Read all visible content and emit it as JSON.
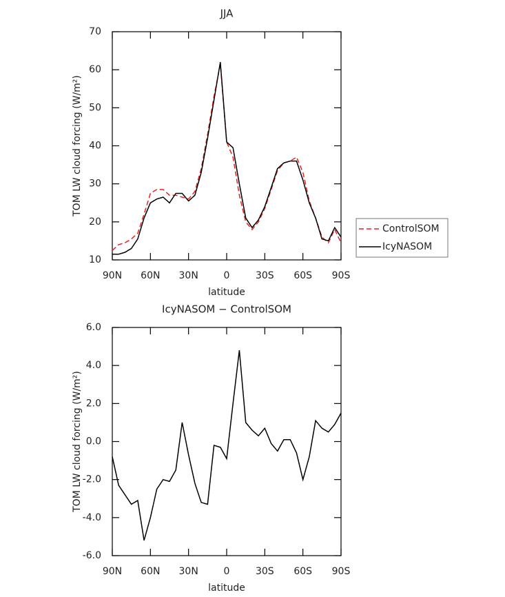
{
  "chart_data": [
    {
      "type": "line",
      "title": "JJA",
      "ylabel": "TOM LW cloud forcing (W/m²)",
      "xlabel": "latitude",
      "x": [
        90,
        85,
        80,
        75,
        70,
        65,
        60,
        55,
        50,
        45,
        40,
        35,
        30,
        25,
        20,
        15,
        10,
        5,
        0,
        -5,
        -10,
        -15,
        -20,
        -25,
        -30,
        -35,
        -40,
        -45,
        -50,
        -55,
        -60,
        -65,
        -70,
        -75,
        -80,
        -85,
        -90
      ],
      "series": [
        {
          "name": "ControlSOM",
          "color": "#e8201e",
          "dash": true,
          "values": [
            12.5,
            14,
            14.5,
            15.5,
            17,
            22,
            27.5,
            28.5,
            28.5,
            27,
            27,
            26.5,
            26,
            28,
            34,
            43,
            53,
            61.5,
            41,
            37,
            27,
            20,
            18,
            20,
            23.5,
            28.5,
            33.5,
            35.5,
            36,
            37,
            33,
            25.5,
            21,
            16,
            14.5,
            18,
            14.5
          ]
        },
        {
          "name": "IcyNASOM",
          "color": "#000000",
          "dash": false,
          "values": [
            11.5,
            11.5,
            12,
            13,
            15.5,
            21,
            25,
            26,
            26.5,
            25,
            27.5,
            27.5,
            25.5,
            27,
            33,
            42,
            52,
            62,
            41,
            39.5,
            30,
            21,
            18.5,
            20.5,
            24,
            29,
            34,
            35.5,
            36,
            36,
            31,
            25,
            21,
            15.5,
            15,
            18.5,
            16
          ]
        }
      ],
      "xlim": [
        90,
        -90
      ],
      "xticks": [
        {
          "value": 90,
          "label": "90N"
        },
        {
          "value": 60,
          "label": "60N"
        },
        {
          "value": 30,
          "label": "30N"
        },
        0,
        {
          "value": -30,
          "label": "30S"
        },
        {
          "value": -60,
          "label": "60S"
        },
        {
          "value": -90,
          "label": "90S"
        }
      ],
      "ylim": [
        10,
        70
      ],
      "yticks": [
        10,
        20,
        30,
        40,
        50,
        60,
        70
      ],
      "legend": "right"
    },
    {
      "type": "line",
      "title": "IcyNASOM − ControlSOM",
      "ylabel": "TOM LW cloud forcing (W/m²)",
      "xlabel": "latitude",
      "x": [
        90,
        85,
        80,
        75,
        70,
        65,
        60,
        55,
        50,
        45,
        40,
        35,
        30,
        25,
        20,
        15,
        10,
        5,
        0,
        -5,
        -10,
        -15,
        -20,
        -25,
        -30,
        -35,
        -40,
        -45,
        -50,
        -55,
        -60,
        -65,
        -70,
        -75,
        -80,
        -85,
        -90
      ],
      "series": [
        {
          "color": "#000000",
          "dash": false,
          "values": [
            -0.8,
            -2.3,
            -2.8,
            -3.3,
            -3.1,
            -5.2,
            -4,
            -2.5,
            -2.0,
            -2.1,
            -1.5,
            1.0,
            -0.7,
            -2.2,
            -3.2,
            -3.3,
            -0.2,
            -0.3,
            -0.9,
            2,
            4.8,
            1,
            0.6,
            0.3,
            0.7,
            -0.1,
            -0.5,
            0.1,
            0.1,
            -0.6,
            -2.0,
            -0.8,
            1.1,
            0.7,
            0.5,
            0.9,
            1.5
          ]
        }
      ],
      "xlim": [
        90,
        -90
      ],
      "xticks": [
        {
          "value": 90,
          "label": "90N"
        },
        {
          "value": 60,
          "label": "60N"
        },
        {
          "value": 30,
          "label": "30N"
        },
        0,
        {
          "value": -30,
          "label": "30S"
        },
        {
          "value": -60,
          "label": "60S"
        },
        {
          "value": -90,
          "label": "90S"
        }
      ],
      "ylim": [
        -6,
        6
      ],
      "yticks": [
        {
          "value": -6,
          "label": "-6.0"
        },
        {
          "value": -4,
          "label": "-4.0"
        },
        {
          "value": -2,
          "label": "-2.0"
        },
        {
          "value": 0,
          "label": "0.0"
        },
        {
          "value": 2,
          "label": "2.0"
        },
        {
          "value": 4,
          "label": "4.0"
        },
        {
          "value": 6,
          "label": "6.0"
        }
      ]
    }
  ]
}
